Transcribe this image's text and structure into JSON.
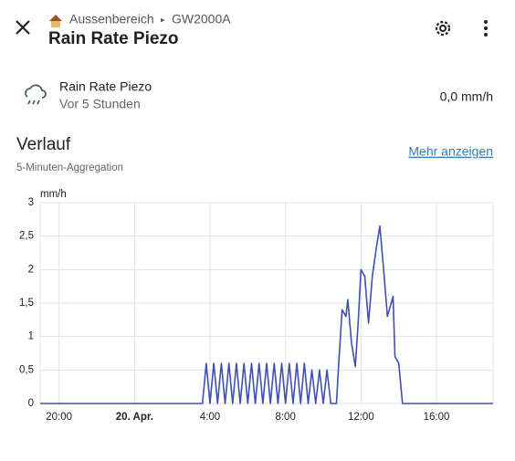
{
  "header": {
    "breadcrumb_area": "Aussenbereich",
    "breadcrumb_device": "GW2000A",
    "title": "Rain Rate Piezo"
  },
  "entity": {
    "name": "Rain Rate Piezo",
    "last_changed": "Vor 5 Stunden",
    "state": "0,0 mm/h"
  },
  "history": {
    "title": "Verlauf",
    "subtitle": "5-Minuten-Aggregation",
    "link": "Mehr anzeigen"
  },
  "chart_data": {
    "type": "line",
    "y_label": "mm/h",
    "x": [
      -5,
      3.6,
      3.8,
      4.0,
      4.2,
      4.4,
      4.6,
      4.8,
      5.0,
      5.2,
      5.4,
      5.6,
      5.8,
      6.0,
      6.2,
      6.4,
      6.6,
      6.8,
      7.0,
      7.2,
      7.4,
      7.6,
      7.8,
      8.0,
      8.2,
      8.4,
      8.6,
      8.8,
      9.0,
      9.2,
      9.4,
      9.6,
      9.8,
      10.0,
      10.2,
      10.4,
      10.7,
      10.8,
      11.0,
      11.2,
      11.3,
      11.5,
      11.7,
      11.85,
      12.0,
      12.2,
      12.4,
      12.6,
      12.8,
      13.0,
      13.2,
      13.4,
      13.6,
      13.7,
      13.8,
      14.0,
      14.2,
      19
    ],
    "series": [
      {
        "name": "Rain Rate Piezo",
        "color": "#3f51b5",
        "values": [
          0,
          0,
          0.6,
          0,
          0.6,
          0,
          0.6,
          0,
          0.6,
          0,
          0.6,
          0,
          0.6,
          0,
          0.6,
          0,
          0.6,
          0,
          0.6,
          0,
          0.6,
          0,
          0.6,
          0,
          0.6,
          0,
          0.6,
          0,
          0.6,
          0,
          0.5,
          0,
          0.5,
          0,
          0.5,
          0,
          0,
          0.5,
          1.4,
          1.3,
          1.55,
          0.9,
          0.55,
          1.2,
          2.0,
          1.9,
          1.2,
          1.9,
          2.3,
          2.65,
          2.0,
          1.3,
          1.5,
          1.6,
          0.7,
          0.6,
          0,
          0
        ]
      }
    ],
    "xlim": [
      -5,
      19
    ],
    "xticks": [
      {
        "value": -4,
        "label": "20:00"
      },
      {
        "value": 0,
        "label": "20. Apr."
      },
      {
        "value": 4,
        "label": "4:00"
      },
      {
        "value": 8,
        "label": "8:00"
      },
      {
        "value": 12,
        "label": "12:00"
      },
      {
        "value": 16,
        "label": "16:00"
      }
    ],
    "ylim": [
      0,
      3
    ],
    "yticks": [
      0,
      {
        "value": 0.5,
        "label": "0,5"
      },
      1,
      {
        "value": 1.5,
        "label": "1,5"
      },
      2,
      {
        "value": 2.5,
        "label": "2,5"
      },
      3
    ],
    "grid": true
  }
}
